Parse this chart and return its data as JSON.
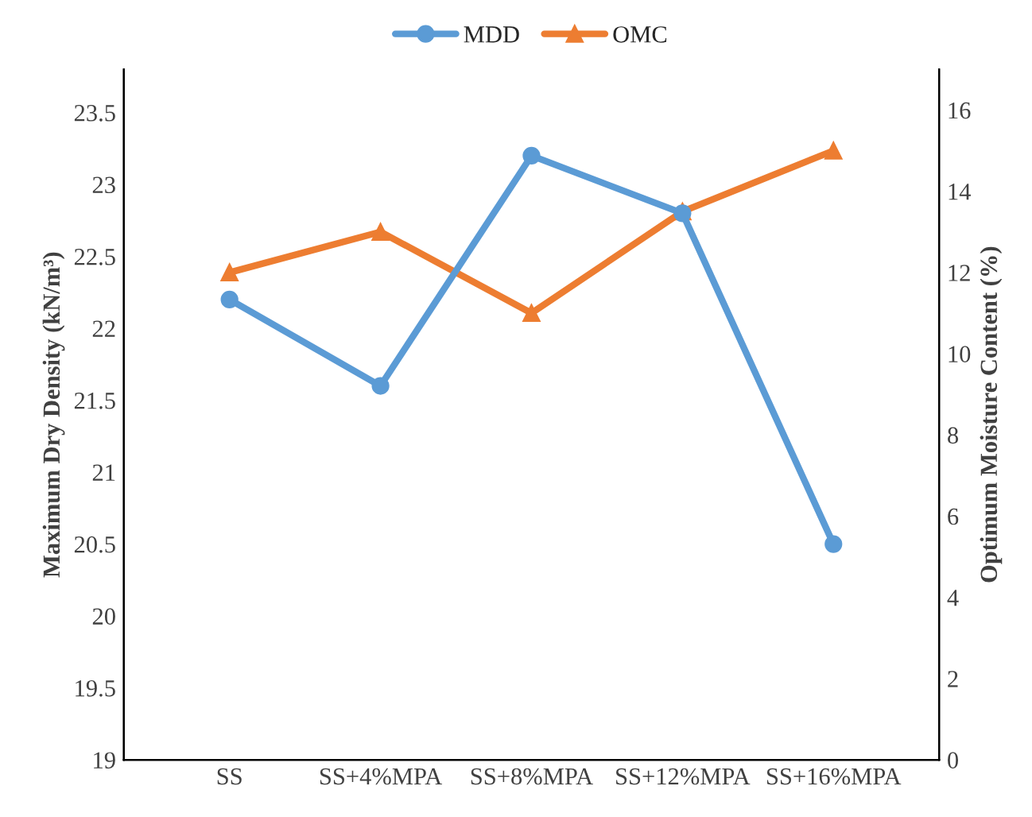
{
  "chart_data": {
    "type": "line",
    "categories": [
      "SS",
      "SS+4%MPA",
      "SS+8%MPA",
      "SS+12%MPA",
      "SS+16%MPA"
    ],
    "series": [
      {
        "name": "MDD",
        "color": "#5b9bd5",
        "marker": "circle",
        "values": [
          22.2,
          21.6,
          23.2,
          22.8,
          20.5
        ]
      },
      {
        "name": "OMC",
        "color": "#ed7d31",
        "marker": "triangle",
        "axis": "y2",
        "values": [
          12,
          13,
          11,
          13.5,
          15
        ]
      }
    ],
    "ylabel": "Maximum Dry Density (kN/m³)",
    "y2label": "Optimum Moisture Content (%)",
    "ylim": [
      19,
      23.8
    ],
    "yticks": [
      19,
      19.5,
      20,
      20.5,
      21,
      21.5,
      22,
      22.5,
      23,
      23.5
    ],
    "y2lim": [
      0,
      17
    ],
    "y2ticks": [
      0,
      2,
      4,
      6,
      8,
      10,
      12,
      14,
      16
    ],
    "legend": "top",
    "grid": false
  }
}
